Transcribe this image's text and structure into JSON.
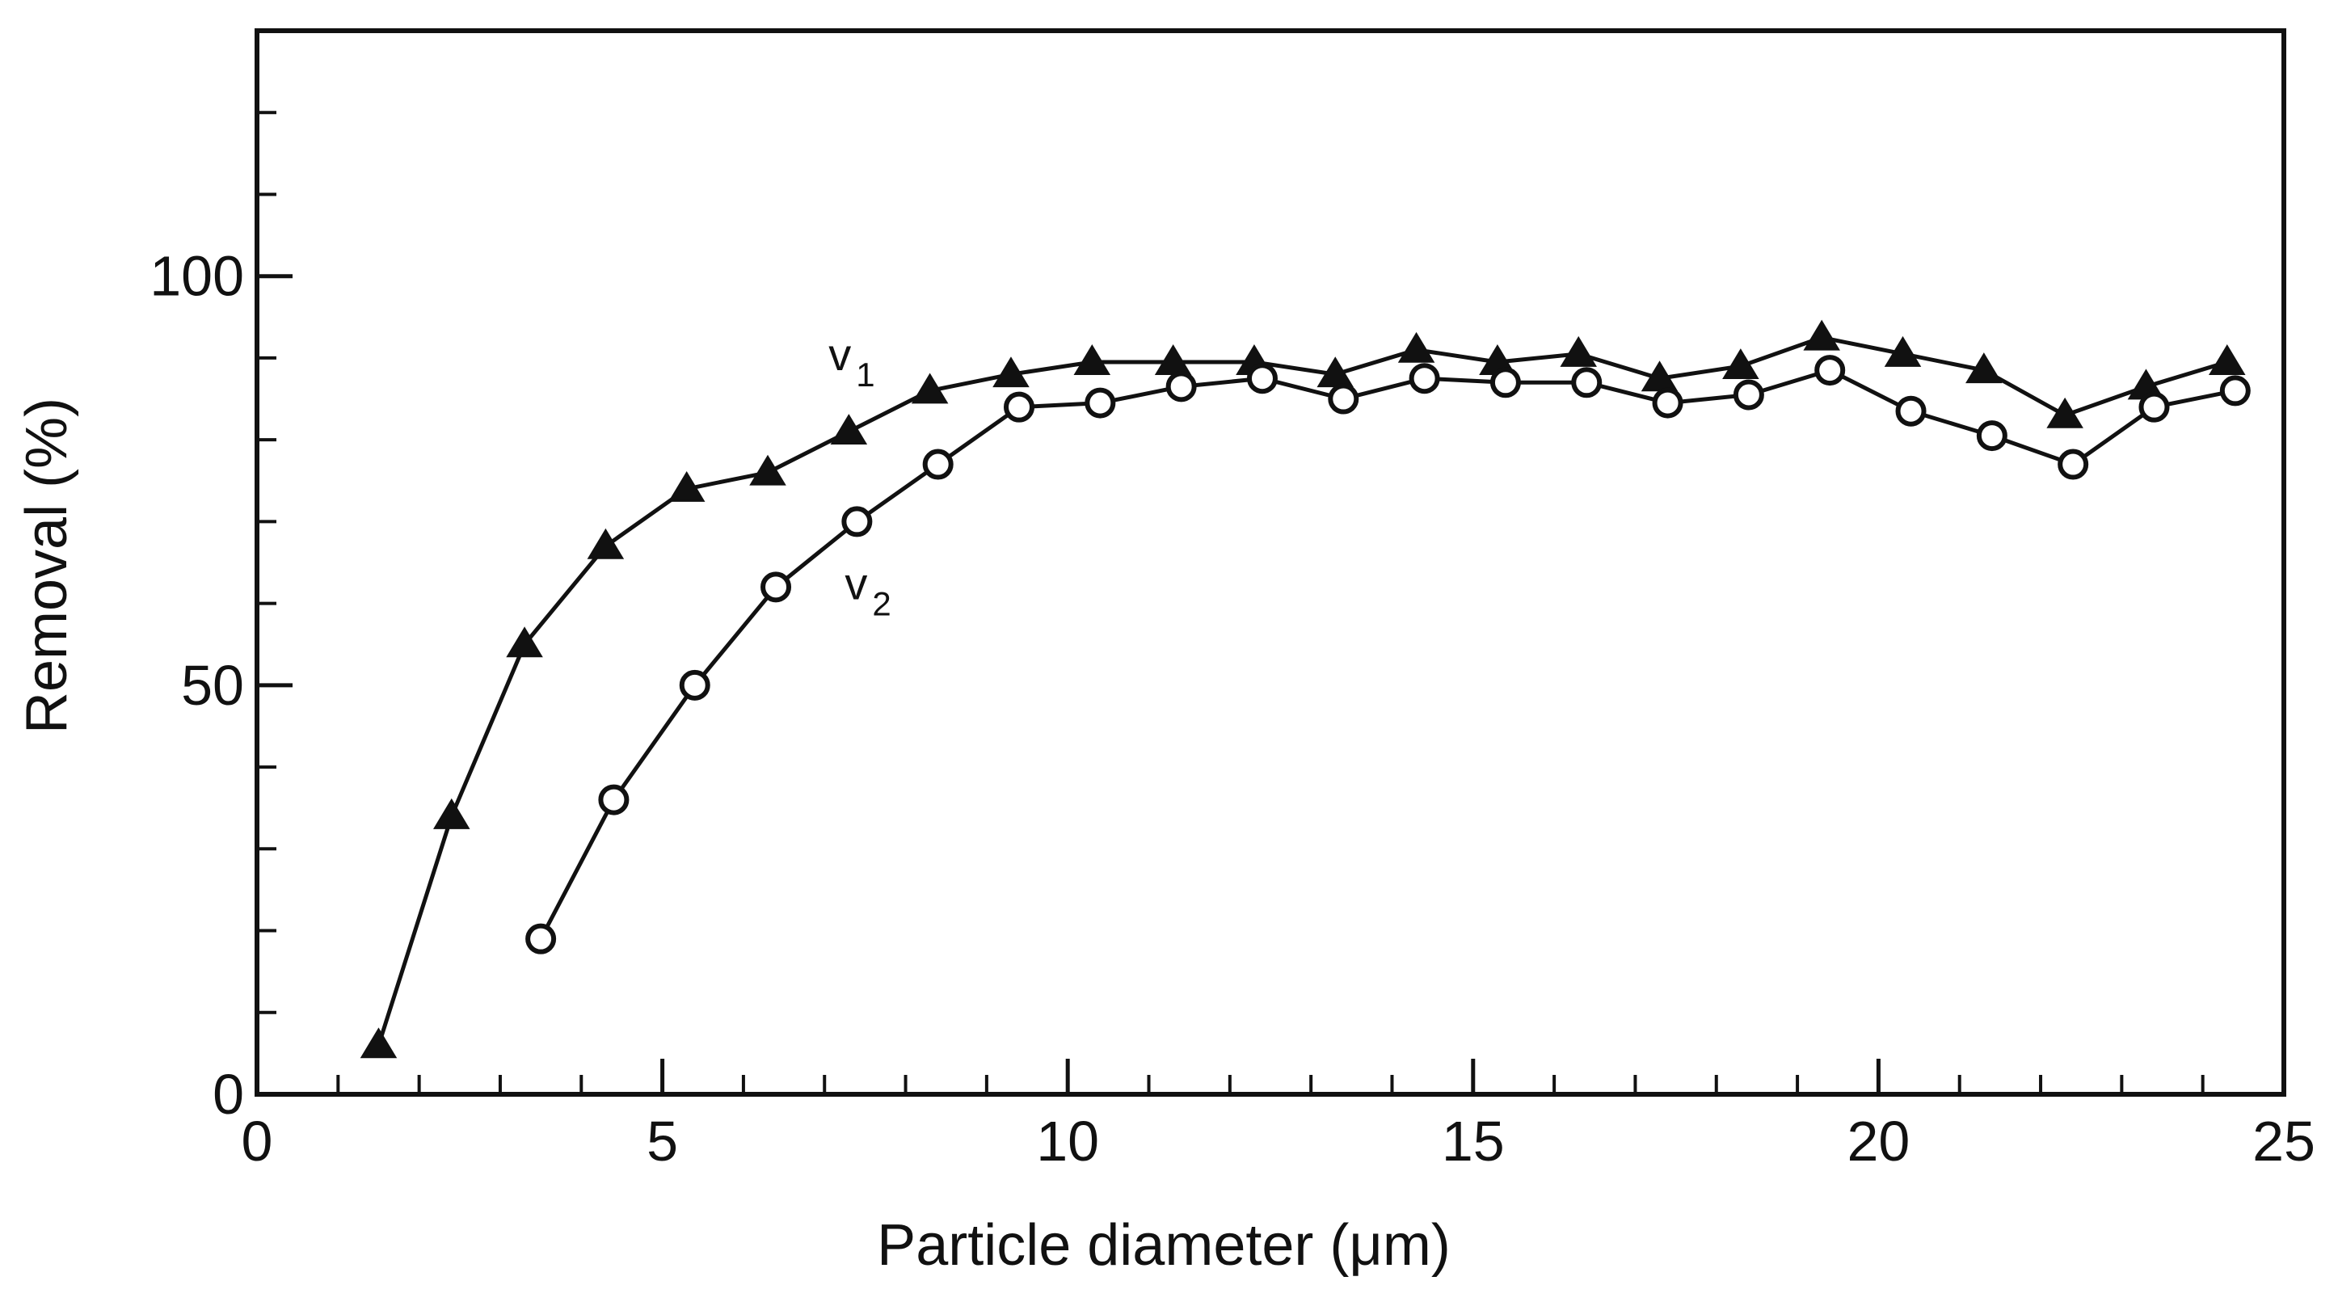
{
  "chart_data": {
    "type": "line",
    "title": "",
    "xlabel": "Particle diameter (μm)",
    "ylabel": "Removal (%)",
    "xlim": [
      0,
      25
    ],
    "ylim": [
      0,
      130
    ],
    "x_ticks": [
      0,
      5,
      10,
      15,
      20,
      25
    ],
    "x_tick_labels": [
      "0",
      "5",
      "10",
      "15",
      "20",
      "25"
    ],
    "y_ticks": [
      0,
      50,
      100
    ],
    "y_tick_labels": [
      "0",
      "50",
      "100"
    ],
    "grid": false,
    "legend": "none (inline series labels)",
    "series": [
      {
        "name": "v1",
        "label_main": "v",
        "label_sub": "1",
        "marker": "filled-triangle",
        "color": "#111111",
        "x": [
          1.5,
          2.4,
          3.3,
          4.3,
          5.3,
          6.3,
          7.3,
          8.3,
          9.3,
          10.3,
          11.3,
          12.3,
          13.3,
          14.3,
          15.3,
          16.3,
          17.3,
          18.3,
          19.3,
          20.3,
          21.3,
          22.3,
          23.3,
          24.3
        ],
        "values": [
          6,
          34,
          55,
          67,
          74,
          76,
          81,
          86,
          88,
          89.5,
          89.5,
          89.5,
          88,
          91,
          89.5,
          90.5,
          87.5,
          89,
          92.5,
          90.5,
          88.5,
          83,
          86.5,
          89.5
        ]
      },
      {
        "name": "v2",
        "label_main": "v",
        "label_sub": "2",
        "marker": "open-circle",
        "color": "#111111",
        "x": [
          3.5,
          4.4,
          5.4,
          6.4,
          7.4,
          8.4,
          9.4,
          10.4,
          11.4,
          12.4,
          13.4,
          14.4,
          15.4,
          16.4,
          17.4,
          18.4,
          19.4,
          20.4,
          21.4,
          22.4,
          23.4,
          24.4
        ],
        "values": [
          19,
          36,
          50,
          62,
          70,
          77,
          84,
          84.5,
          86.5,
          87.5,
          85,
          87.5,
          87,
          87,
          84.5,
          85.5,
          88.5,
          83.5,
          80.5,
          77,
          84,
          86
        ]
      }
    ]
  }
}
